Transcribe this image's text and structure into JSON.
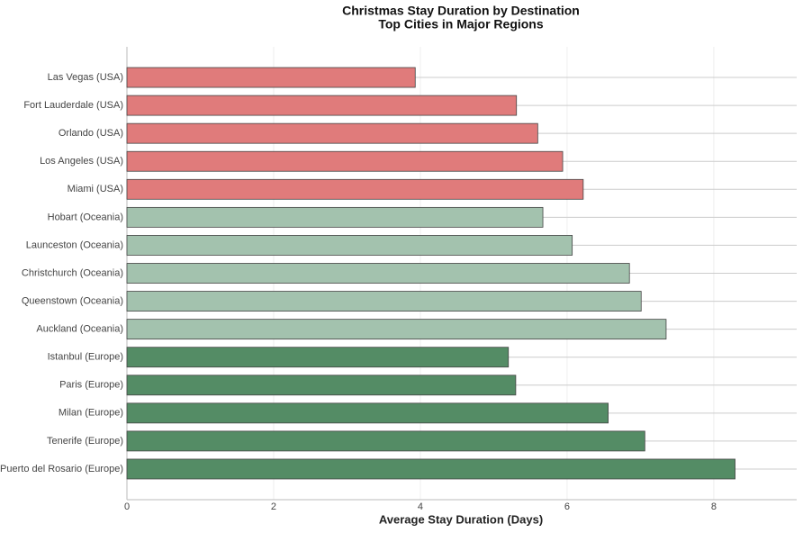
{
  "chart_data": {
    "type": "barh",
    "title": "Christmas Stay Duration by Destination",
    "subtitle": "Top Cities in Major Regions",
    "x_label": "Average Stay Duration (Days)",
    "categories": [
      "Las Vegas (USA)",
      "Fort Lauderdale (USA)",
      "Orlando (USA)",
      "Los Angeles (USA)",
      "Miami (USA)",
      "Hobart (Oceania)",
      "Launceston (Oceania)",
      "Christchurch (Oceania)",
      "Queenstown (Oceania)",
      "Auckland (Oceania)",
      "Istanbul (Europe)",
      "Paris (Europe)",
      "Milan (Europe)",
      "Tenerife (Europe)",
      "Puerto del Rosario (Europe)"
    ],
    "values": [
      3.93,
      5.31,
      5.6,
      5.94,
      6.22,
      5.67,
      6.07,
      6.85,
      7.01,
      7.35,
      5.2,
      5.3,
      6.56,
      7.06,
      8.29
    ],
    "colors": [
      "#e07b7b",
      "#e07b7b",
      "#e07b7b",
      "#e07b7b",
      "#e07b7b",
      "#a3c2ae",
      "#a3c2ae",
      "#a3c2ae",
      "#a3c2ae",
      "#a3c2ae",
      "#548c65",
      "#548c65",
      "#548c65",
      "#548c65",
      "#548c65"
    ],
    "xlim": [
      0,
      9.13
    ],
    "xticks": [
      0,
      2,
      4,
      6,
      8
    ],
    "grid": true
  }
}
